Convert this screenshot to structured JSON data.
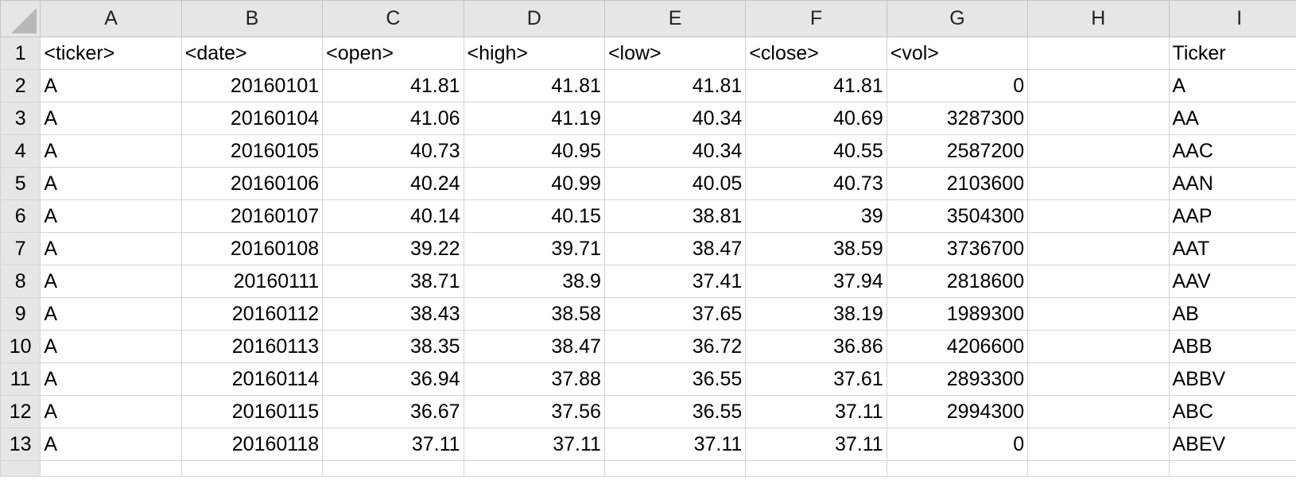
{
  "columns": [
    "A",
    "B",
    "C",
    "D",
    "E",
    "F",
    "G",
    "H",
    "I"
  ],
  "rows": [
    {
      "n": "1",
      "cells": [
        "<ticker>",
        "<date>",
        "<open>",
        "<high>",
        "<low>",
        "<close>",
        "<vol>",
        "",
        "Ticker"
      ]
    },
    {
      "n": "2",
      "cells": [
        "A",
        "20160101",
        "41.81",
        "41.81",
        "41.81",
        "41.81",
        "0",
        "",
        "A"
      ]
    },
    {
      "n": "3",
      "cells": [
        "A",
        "20160104",
        "41.06",
        "41.19",
        "40.34",
        "40.69",
        "3287300",
        "",
        "AA"
      ]
    },
    {
      "n": "4",
      "cells": [
        "A",
        "20160105",
        "40.73",
        "40.95",
        "40.34",
        "40.55",
        "2587200",
        "",
        "AAC"
      ]
    },
    {
      "n": "5",
      "cells": [
        "A",
        "20160106",
        "40.24",
        "40.99",
        "40.05",
        "40.73",
        "2103600",
        "",
        "AAN"
      ]
    },
    {
      "n": "6",
      "cells": [
        "A",
        "20160107",
        "40.14",
        "40.15",
        "38.81",
        "39",
        "3504300",
        "",
        "AAP"
      ]
    },
    {
      "n": "7",
      "cells": [
        "A",
        "20160108",
        "39.22",
        "39.71",
        "38.47",
        "38.59",
        "3736700",
        "",
        "AAT"
      ]
    },
    {
      "n": "8",
      "cells": [
        "A",
        "20160111",
        "38.71",
        "38.9",
        "37.41",
        "37.94",
        "2818600",
        "",
        "AAV"
      ]
    },
    {
      "n": "9",
      "cells": [
        "A",
        "20160112",
        "38.43",
        "38.58",
        "37.65",
        "38.19",
        "1989300",
        "",
        "AB"
      ]
    },
    {
      "n": "10",
      "cells": [
        "A",
        "20160113",
        "38.35",
        "38.47",
        "36.72",
        "36.86",
        "4206600",
        "",
        "ABB"
      ]
    },
    {
      "n": "11",
      "cells": [
        "A",
        "20160114",
        "36.94",
        "37.88",
        "36.55",
        "37.61",
        "2893300",
        "",
        "ABBV"
      ]
    },
    {
      "n": "12",
      "cells": [
        "A",
        "20160115",
        "36.67",
        "37.56",
        "36.55",
        "37.11",
        "2994300",
        "",
        "ABC"
      ]
    },
    {
      "n": "13",
      "cells": [
        "A",
        "20160118",
        "37.11",
        "37.11",
        "37.11",
        "37.11",
        "0",
        "",
        "ABEV"
      ]
    }
  ]
}
